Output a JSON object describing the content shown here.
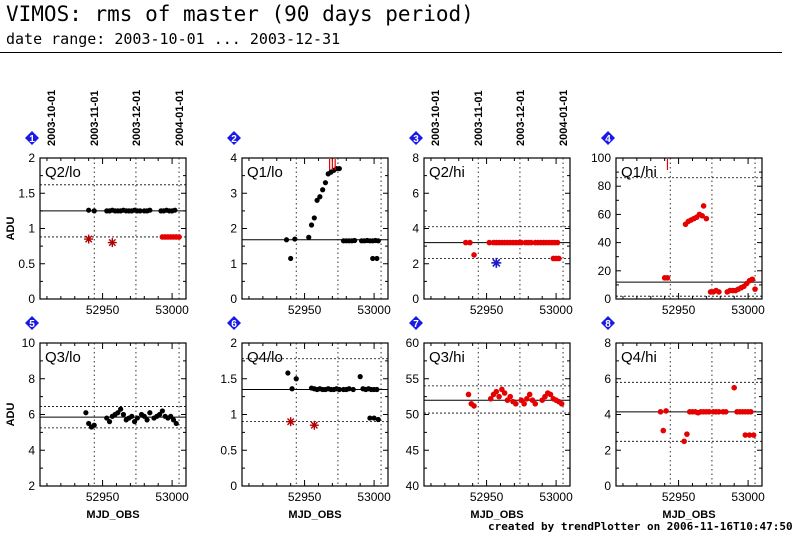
{
  "header": {
    "title": "VIMOS: rms of master (90 days period)",
    "subtitle": "date range: 2003-10-01 ... 2003-12-31"
  },
  "footer": {
    "text": "created by trendPlotter on 2006-11-16T10:47:50"
  },
  "date_ticks": {
    "labels": [
      "2003-10-01",
      "2003-11-01",
      "2003-12-01",
      "2004-01-01"
    ],
    "mjd": [
      52913,
      52944,
      52974,
      53005
    ]
  },
  "colors": {
    "black_points": "#000000",
    "red_points": "#e60000",
    "blue_point": "#1a1acc",
    "badge": "#1a1ae6",
    "outlier": "#b30000"
  },
  "chart_data": [
    {
      "type": "scatter",
      "panel": "1",
      "label": "Q2/lo",
      "xlim": [
        52905,
        53010
      ],
      "ylim": [
        0,
        2
      ],
      "yticks": [
        0,
        0.5,
        1,
        1.5,
        2
      ],
      "yticklabels": [
        "0",
        "0.5",
        "1",
        "1.5",
        "2"
      ],
      "ylabel": "ADU",
      "xlabel": "",
      "xticklabels": [
        "52950",
        "53000"
      ],
      "xticks": [
        52950,
        53000
      ],
      "median": 1.25,
      "lower": 0.88,
      "upper": 1.62,
      "color": "black",
      "points": [
        [
          52940,
          1.26
        ],
        [
          52944,
          1.25
        ],
        [
          52953,
          1.25
        ],
        [
          52955,
          1.25
        ],
        [
          52957,
          1.26
        ],
        [
          52959,
          1.25
        ],
        [
          52961,
          1.25
        ],
        [
          52963,
          1.25
        ],
        [
          52965,
          1.26
        ],
        [
          52967,
          1.25
        ],
        [
          52969,
          1.25
        ],
        [
          52971,
          1.25
        ],
        [
          52973,
          1.26
        ],
        [
          52975,
          1.25
        ],
        [
          52977,
          1.25
        ],
        [
          52980,
          1.25
        ],
        [
          52982,
          1.25
        ],
        [
          52984,
          1.26
        ],
        [
          52992,
          1.25
        ],
        [
          52994,
          1.25
        ],
        [
          52996,
          1.26
        ],
        [
          52998,
          1.25
        ],
        [
          53000,
          1.25
        ],
        [
          53002,
          1.26
        ]
      ],
      "red_points": [
        [
          52993,
          0.88
        ],
        [
          52995,
          0.88
        ],
        [
          52997,
          0.88
        ],
        [
          52999,
          0.88
        ],
        [
          53001,
          0.88
        ],
        [
          53003,
          0.88
        ],
        [
          53005,
          0.88
        ]
      ],
      "outliers": [
        [
          52940,
          0.85
        ],
        [
          52957,
          0.8
        ]
      ],
      "arrows": []
    },
    {
      "type": "scatter",
      "panel": "2",
      "label": "Q1/lo",
      "xlim": [
        52905,
        53010
      ],
      "ylim": [
        0,
        4
      ],
      "yticks": [
        0,
        1,
        2,
        3,
        4
      ],
      "yticklabels": [
        "0",
        "1",
        "2",
        "3",
        "4"
      ],
      "ylabel": "",
      "xlabel": "",
      "xticklabels": [
        "52950",
        "53000"
      ],
      "xticks": [
        52950,
        53000
      ],
      "median": 1.68,
      "lower": null,
      "upper": null,
      "color": "black",
      "points": [
        [
          52937,
          1.68
        ],
        [
          52940,
          1.15
        ],
        [
          52943,
          1.7
        ],
        [
          52953,
          1.75
        ],
        [
          52955,
          2.1
        ],
        [
          52957,
          2.3
        ],
        [
          52959,
          2.8
        ],
        [
          52961,
          2.9
        ],
        [
          52963,
          3.1
        ],
        [
          52965,
          3.3
        ],
        [
          52967,
          3.55
        ],
        [
          52969,
          3.6
        ],
        [
          52971,
          3.65
        ],
        [
          52973,
          3.7
        ],
        [
          52975,
          3.7
        ],
        [
          52978,
          1.65
        ],
        [
          52980,
          1.65
        ],
        [
          52982,
          1.65
        ],
        [
          52984,
          1.65
        ],
        [
          52986,
          1.66
        ],
        [
          52991,
          1.65
        ],
        [
          52993,
          1.65
        ],
        [
          52995,
          1.66
        ],
        [
          52997,
          1.65
        ],
        [
          52999,
          1.65
        ],
        [
          53001,
          1.66
        ],
        [
          53003,
          1.65
        ],
        [
          52999,
          1.15
        ],
        [
          53002,
          1.15
        ]
      ],
      "red_points": [],
      "outliers": [],
      "arrows": [
        52968,
        52970,
        52972
      ]
    },
    {
      "type": "scatter",
      "panel": "3",
      "label": "Q2/hi",
      "xlim": [
        52905,
        53010
      ],
      "ylim": [
        0,
        8
      ],
      "yticks": [
        0,
        2,
        4,
        6,
        8
      ],
      "yticklabels": [
        "0",
        "2",
        "4",
        "6",
        "8"
      ],
      "ylabel": "",
      "xlabel": "",
      "xticklabels": [
        "52950",
        "53000"
      ],
      "xticks": [
        52950,
        53000
      ],
      "median": 3.2,
      "lower": 2.3,
      "upper": 4.1,
      "color": "red",
      "points": [],
      "red_points": [
        [
          52935,
          3.2
        ],
        [
          52938,
          3.2
        ],
        [
          52941,
          2.5
        ],
        [
          52952,
          3.2
        ],
        [
          52955,
          3.2
        ],
        [
          52957,
          3.2
        ],
        [
          52959,
          3.2
        ],
        [
          52961,
          3.2
        ],
        [
          52963,
          3.2
        ],
        [
          52965,
          3.2
        ],
        [
          52967,
          3.2
        ],
        [
          52969,
          3.2
        ],
        [
          52971,
          3.2
        ],
        [
          52973,
          3.2
        ],
        [
          52975,
          3.2
        ],
        [
          52978,
          3.2
        ],
        [
          52980,
          3.2
        ],
        [
          52982,
          3.2
        ],
        [
          52985,
          3.2
        ],
        [
          52987,
          3.2
        ],
        [
          52989,
          3.2
        ],
        [
          52991,
          3.2
        ],
        [
          52993,
          3.2
        ],
        [
          52995,
          3.2
        ],
        [
          52997,
          3.2
        ],
        [
          52999,
          3.2
        ],
        [
          53001,
          3.2
        ],
        [
          52998,
          2.3
        ],
        [
          53000,
          2.3
        ],
        [
          53002,
          2.3
        ]
      ],
      "blue_points": [
        [
          52957,
          2.05
        ]
      ],
      "outliers": [],
      "arrows": []
    },
    {
      "type": "scatter",
      "panel": "4",
      "label": "Q1/hi",
      "xlim": [
        52905,
        53010
      ],
      "ylim": [
        0,
        100
      ],
      "yticks": [
        0,
        20,
        40,
        60,
        80,
        100
      ],
      "yticklabels": [
        "0",
        "20",
        "40",
        "60",
        "80",
        "100"
      ],
      "ylabel": "",
      "xlabel": "",
      "xticklabels": [
        "52950",
        "53000"
      ],
      "xticks": [
        52950,
        53000
      ],
      "median": 12,
      "lower": 2,
      "upper": 86,
      "color": "red",
      "points": [],
      "red_points": [
        [
          52940,
          15
        ],
        [
          52942,
          15
        ],
        [
          52955,
          53
        ],
        [
          52957,
          55
        ],
        [
          52959,
          56
        ],
        [
          52961,
          57
        ],
        [
          52963,
          58
        ],
        [
          52965,
          60
        ],
        [
          52967,
          59
        ],
        [
          52968,
          66
        ],
        [
          52970,
          57
        ],
        [
          52973,
          5
        ],
        [
          52975,
          5
        ],
        [
          52977,
          6
        ],
        [
          52979,
          5
        ],
        [
          52985,
          5
        ],
        [
          52987,
          6
        ],
        [
          52989,
          6
        ],
        [
          52991,
          6
        ],
        [
          52993,
          7
        ],
        [
          52995,
          8
        ],
        [
          52997,
          9
        ],
        [
          52999,
          11
        ],
        [
          53001,
          13
        ],
        [
          53003,
          14
        ],
        [
          53005,
          7
        ]
      ],
      "outliers": [],
      "arrows": [
        52942
      ]
    },
    {
      "type": "scatter",
      "panel": "5",
      "label": "Q3/lo",
      "xlim": [
        52905,
        53010
      ],
      "ylim": [
        2,
        10
      ],
      "yticks": [
        2,
        4,
        6,
        8,
        10
      ],
      "yticklabels": [
        "2",
        "4",
        "6",
        "8",
        "10"
      ],
      "ylabel": "ADU",
      "xlabel": "MJD_OBS",
      "xticklabels": [
        "52950",
        "53000"
      ],
      "xticks": [
        52950,
        53000
      ],
      "median": 5.85,
      "lower": 5.25,
      "upper": 6.45,
      "color": "black",
      "points": [
        [
          52938,
          6.1
        ],
        [
          52940,
          5.5
        ],
        [
          52942,
          5.3
        ],
        [
          52944,
          5.4
        ],
        [
          52953,
          5.8
        ],
        [
          52955,
          5.6
        ],
        [
          52957,
          5.9
        ],
        [
          52959,
          6.0
        ],
        [
          52961,
          6.1
        ],
        [
          52963,
          6.3
        ],
        [
          52965,
          6.0
        ],
        [
          52967,
          5.7
        ],
        [
          52969,
          5.8
        ],
        [
          52971,
          5.9
        ],
        [
          52973,
          5.6
        ],
        [
          52975,
          5.8
        ],
        [
          52978,
          6.0
        ],
        [
          52980,
          5.9
        ],
        [
          52982,
          5.7
        ],
        [
          52984,
          6.1
        ],
        [
          52987,
          5.8
        ],
        [
          52989,
          5.9
        ],
        [
          52991,
          6.0
        ],
        [
          52993,
          6.2
        ],
        [
          52995,
          5.9
        ],
        [
          52997,
          5.8
        ],
        [
          52999,
          5.9
        ],
        [
          53001,
          5.7
        ],
        [
          53003,
          5.5
        ]
      ],
      "red_points": [],
      "outliers": [],
      "arrows": []
    },
    {
      "type": "scatter",
      "panel": "6",
      "label": "Q4/lo",
      "xlim": [
        52905,
        53010
      ],
      "ylim": [
        0,
        2
      ],
      "yticks": [
        0,
        0.5,
        1,
        1.5,
        2
      ],
      "yticklabels": [
        "0",
        "0.5",
        "1",
        "1.5",
        "2"
      ],
      "ylabel": "",
      "xlabel": "MJD_OBS",
      "xticklabels": [
        "52950",
        "53000"
      ],
      "xticks": [
        52950,
        53000
      ],
      "median": 1.35,
      "lower": 0.9,
      "upper": 1.78,
      "color": "black",
      "points": [
        [
          52938,
          1.58
        ],
        [
          52941,
          1.36
        ],
        [
          52944,
          1.5
        ],
        [
          52955,
          1.37
        ],
        [
          52957,
          1.36
        ],
        [
          52959,
          1.35
        ],
        [
          52961,
          1.36
        ],
        [
          52963,
          1.35
        ],
        [
          52965,
          1.35
        ],
        [
          52967,
          1.36
        ],
        [
          52969,
          1.35
        ],
        [
          52971,
          1.35
        ],
        [
          52973,
          1.36
        ],
        [
          52975,
          1.35
        ],
        [
          52978,
          1.35
        ],
        [
          52980,
          1.35
        ],
        [
          52982,
          1.36
        ],
        [
          52985,
          1.35
        ],
        [
          52990,
          1.53
        ],
        [
          52992,
          1.36
        ],
        [
          52994,
          1.35
        ],
        [
          52996,
          1.36
        ],
        [
          52998,
          1.35
        ],
        [
          53000,
          1.35
        ],
        [
          53002,
          1.35
        ],
        [
          52997,
          0.95
        ],
        [
          53000,
          0.95
        ],
        [
          53003,
          0.93
        ]
      ],
      "red_points": [],
      "outliers": [
        [
          52940,
          0.9
        ],
        [
          52957,
          0.85
        ]
      ],
      "arrows": []
    },
    {
      "type": "scatter",
      "panel": "7",
      "label": "Q3/hi",
      "xlim": [
        52905,
        53010
      ],
      "ylim": [
        40,
        60
      ],
      "yticks": [
        40,
        45,
        50,
        55,
        60
      ],
      "yticklabels": [
        "40",
        "45",
        "50",
        "55",
        "60"
      ],
      "ylabel": "",
      "xlabel": "MJD_OBS",
      "xticklabels": [
        "52950",
        "53000"
      ],
      "xticks": [
        52950,
        53000
      ],
      "median": 52,
      "lower": 50.2,
      "upper": 54,
      "color": "red",
      "points": [],
      "red_points": [
        [
          52937,
          52.8
        ],
        [
          52939,
          51.5
        ],
        [
          52941,
          51.2
        ],
        [
          52953,
          52.2
        ],
        [
          52955,
          52.8
        ],
        [
          52957,
          53.2
        ],
        [
          52959,
          52.5
        ],
        [
          52961,
          53.5
        ],
        [
          52963,
          53.0
        ],
        [
          52965,
          52.0
        ],
        [
          52967,
          52.5
        ],
        [
          52969,
          51.8
        ],
        [
          52971,
          51.5
        ],
        [
          52975,
          52.0
        ],
        [
          52977,
          51.5
        ],
        [
          52979,
          52.2
        ],
        [
          52981,
          52.8
        ],
        [
          52983,
          52.0
        ],
        [
          52985,
          51.5
        ],
        [
          52990,
          52.0
        ],
        [
          52992,
          52.5
        ],
        [
          52994,
          53.0
        ],
        [
          52996,
          52.8
        ],
        [
          52998,
          52.2
        ],
        [
          53000,
          52.0
        ],
        [
          53002,
          51.8
        ],
        [
          53004,
          51.5
        ]
      ],
      "outliers": [],
      "arrows": []
    },
    {
      "type": "scatter",
      "panel": "8",
      "label": "Q4/hi",
      "xlim": [
        52905,
        53010
      ],
      "ylim": [
        0,
        8
      ],
      "yticks": [
        0,
        2,
        4,
        6,
        8
      ],
      "yticklabels": [
        "0",
        "2",
        "4",
        "6",
        "8"
      ],
      "ylabel": "",
      "xlabel": "MJD_OBS",
      "xticklabels": [
        "52950",
        "53000"
      ],
      "xticks": [
        52950,
        53000
      ],
      "median": 4.15,
      "lower": 2.5,
      "upper": 5.8,
      "color": "red",
      "points": [],
      "red_points": [
        [
          52937,
          4.15
        ],
        [
          52939,
          3.1
        ],
        [
          52941,
          4.2
        ],
        [
          52954,
          2.5
        ],
        [
          52956,
          2.9
        ],
        [
          52958,
          4.15
        ],
        [
          52960,
          4.15
        ],
        [
          52962,
          4.15
        ],
        [
          52964,
          4.1
        ],
        [
          52966,
          4.15
        ],
        [
          52968,
          4.15
        ],
        [
          52970,
          4.15
        ],
        [
          52972,
          4.15
        ],
        [
          52975,
          4.15
        ],
        [
          52977,
          4.15
        ],
        [
          52979,
          4.15
        ],
        [
          52982,
          4.15
        ],
        [
          52984,
          4.15
        ],
        [
          52990,
          5.5
        ],
        [
          52992,
          4.15
        ],
        [
          52994,
          4.15
        ],
        [
          52996,
          4.15
        ],
        [
          52998,
          4.15
        ],
        [
          53000,
          4.15
        ],
        [
          53002,
          4.15
        ],
        [
          52998,
          2.85
        ],
        [
          53001,
          2.85
        ],
        [
          53004,
          2.85
        ]
      ],
      "outliers": [],
      "arrows": []
    }
  ]
}
